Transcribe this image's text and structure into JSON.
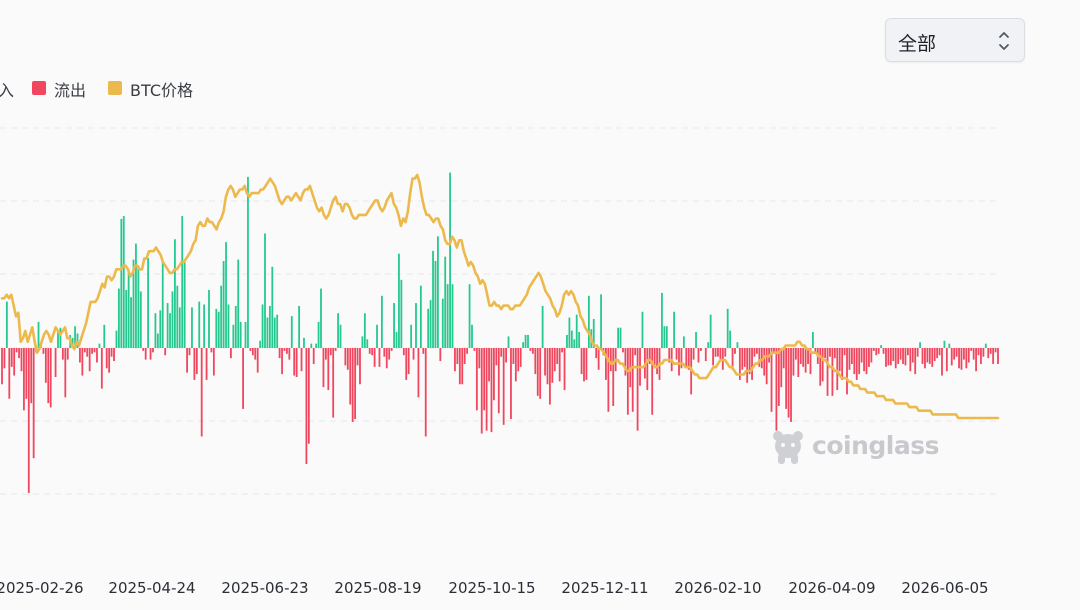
{
  "filter": {
    "selected": "全部"
  },
  "legend": [
    {
      "label": "流入",
      "color": "#25c98f"
    },
    {
      "label": "流出",
      "color": "#f0465e"
    },
    {
      "label": "BTC价格",
      "color": "#ecb94c"
    }
  ],
  "watermark": "coinglass",
  "chart_data": {
    "type": "bar",
    "x_tick_labels": [
      "2025-02-26",
      "2025-04-24",
      "2025-06-23",
      "2025-08-19",
      "2025-10-15",
      "2025-12-11",
      "2026-02-10",
      "2026-04-09",
      "2026-06-05"
    ],
    "grid": true,
    "series": [
      {
        "name": "流入",
        "color": "#25c98f",
        "kind": "bar",
        "values": []
      },
      {
        "name": "流出",
        "color": "#f0465e",
        "kind": "bar",
        "values": []
      },
      {
        "name": "BTC价格",
        "color": "#ecb94c",
        "kind": "line",
        "values": []
      }
    ],
    "bar_values": [
      -2.5,
      -1.4,
      3.2,
      -3.5,
      -1.3,
      -1.9,
      -0.3,
      -0.7,
      -1.6,
      -4.3,
      -3.5,
      -10,
      -3.8,
      -7.6,
      -0.3,
      1.8,
      0.2,
      -0.4,
      -2.4,
      -3.8,
      -4.1,
      0,
      -2,
      1.1,
      1.4,
      -0.8,
      -3.4,
      -0.8,
      0.9,
      0.7,
      1.5,
      1,
      -1,
      -1.9,
      -0.3,
      -0.6,
      -1.6,
      -0.4,
      -0.3,
      -1,
      0.3,
      -2.8,
      1.6,
      -1.4,
      -1.7,
      -0.6,
      -0.9,
      1.2,
      4.1,
      8.9,
      9.1,
      4,
      5.4,
      3.5,
      6.1,
      7.2,
      5.7,
      3.9,
      -0.2,
      -0.8,
      6.2,
      -0.8,
      -0.3,
      2.4,
      1,
      2.6,
      6,
      -0.5,
      3.1,
      2.4,
      3.9,
      7.5,
      4.3,
      2.8,
      9.1,
      6,
      -1.7,
      -0.5,
      2.8,
      -2.2,
      -1.8,
      3.2,
      -6.1,
      3,
      -2.2,
      4,
      -0.3,
      -1.9,
      2.7,
      2.5,
      4.3,
      6,
      7.3,
      3,
      -0.7,
      1.6,
      2.9,
      6.1,
      1.8,
      -4.2,
      1.8,
      11.8,
      -0.2,
      -0.5,
      -0.8,
      -1.7,
      0.5,
      3,
      7.9,
      2.1,
      2.9,
      5.6,
      2.1,
      2.3,
      -0.7,
      -1.8,
      -0.2,
      -0.4,
      -0.8,
      2.2,
      -1.9,
      -2,
      2.9,
      -1.6,
      0.7,
      -8,
      -6.6,
      0.3,
      -1.1,
      0.3,
      1.8,
      4.1,
      -2.7,
      -0.8,
      -2.9,
      -0.5,
      -4.8,
      -0.2,
      2.4,
      1.6,
      0,
      -1.2,
      -1.5,
      -3.9,
      -5.1,
      -4.9,
      -1.2,
      -2.5,
      0.8,
      2.4,
      0.6,
      -0.4,
      -0.5,
      -1.3,
      1.6,
      -1.3,
      3.6,
      -0.6,
      -1.4,
      -0.8,
      -0.2,
      3.1,
      1.1,
      6.5,
      4.7,
      -0.5,
      -2.2,
      -1.8,
      1.6,
      -0.8,
      3.1,
      -3.4,
      4.3,
      -0.4,
      -6.1,
      2.7,
      3.3,
      6.7,
      6,
      7.7,
      -0.9,
      3.4,
      6.3,
      4.4,
      12.1,
      4.4,
      -1.6,
      -1.1,
      -2.5,
      -2.5,
      -1.1,
      -0.4,
      4.4,
      1.6,
      -0.2,
      -4.3,
      -1.4,
      -5.9,
      -4.3,
      -5.7,
      -2.3,
      -5.8,
      -3.6,
      -1.2,
      -4.5,
      -0.6,
      -5.3,
      -1,
      0.8,
      -4.9,
      -1.1,
      -2.3,
      -1.6,
      -1.3,
      0.4,
      0.9,
      0.9,
      -0.2,
      -0.4,
      -1.8,
      -3.3,
      -3.5,
      2.9,
      -1.9,
      -2.5,
      -3.9,
      -2.4,
      -1.6,
      -1.1,
      -2.3,
      -0.3,
      -2.9,
      0.9,
      2.1,
      1.2,
      0.6,
      2.3,
      1.1,
      -1.8,
      -2.3,
      -2.2,
      3.6,
      1.3,
      2,
      -0.7,
      -1.5,
      3.7,
      -0.5,
      -2.2,
      -4.4,
      -1.6,
      -4,
      -1.6,
      1.4,
      1.4,
      -0.3,
      -1.9,
      -4.6,
      -2.7,
      -4.4,
      -0.5,
      -5.7,
      -2.6,
      2.5,
      -2.1,
      -2.9,
      -1.1,
      -4.6,
      -1.4,
      -1.8,
      -2.2,
      3.8,
      1.5,
      1.5,
      -1,
      -1.6,
      2.5,
      -0.8,
      -1.9,
      -1.4,
      0.8,
      -1.4,
      -1.5,
      -3.2,
      -0.8,
      1.1,
      -1,
      -0.2,
      0,
      -0.9,
      0.4,
      2.3,
      -1.2,
      -0.6,
      -0.6,
      -0.8,
      -1.5,
      -0.6,
      2.7,
      1.2,
      -1.5,
      -0.4,
      0.4,
      -2.2,
      -1.5,
      -1.3,
      -2.4,
      -1.8,
      -2.2,
      -0.6,
      -0.4,
      -1.3,
      -1.4,
      -1.9,
      -2.5,
      -1,
      -4.4,
      -0.4,
      -5.7,
      -4,
      -2.7,
      -1.4,
      -4.2,
      -4.8,
      -5.1,
      -1.9,
      -0.8,
      -2,
      -1.1,
      -1.3,
      -1.7,
      -1.1,
      -1.8,
      1.1,
      -0.4,
      -1.1,
      -2.6,
      -2.3,
      -0.7,
      -3.3,
      -0.6,
      -3.3,
      -0.7,
      -2.9,
      -1.6,
      -2.2,
      -0.5,
      -3.2,
      -1.5,
      -1.1,
      -1.8,
      -2.2,
      -1.8,
      -1,
      -1.6,
      -1.8,
      -1.3,
      -1,
      -0.2,
      -0.5,
      -0.4,
      0.2,
      -0.4,
      -1.3,
      -1.2,
      -1.2,
      -0.9,
      -1.4,
      -1.1,
      -0.8,
      -1.1,
      -1.2,
      -0.5,
      -1.6,
      -1,
      -1.8,
      -0.6,
      0.4,
      -1.1,
      -1.4,
      -1,
      -1.1,
      -1.3,
      -0.9,
      -0.7,
      -0.5,
      -1.9,
      0.5,
      -1.6,
      0.3,
      -1.2,
      -0.8,
      -0.6,
      -1.4,
      -1.5,
      -0.8,
      -1.4,
      -1,
      -0.2,
      -0.8,
      -1.6,
      -0.5,
      -1.1,
      -0.6,
      0.3,
      -0.7,
      -0.4,
      -1.1,
      -0.3,
      -1.1
    ],
    "price_values": [
      88,
      88,
      89,
      88,
      89,
      86,
      83,
      84,
      76,
      77,
      79,
      76,
      78,
      80,
      76,
      73,
      74,
      76,
      78,
      79,
      78,
      76,
      78,
      80,
      79,
      78,
      79,
      80,
      77,
      77,
      75,
      74,
      76,
      75,
      77,
      79,
      81,
      84,
      87,
      87,
      87,
      88,
      90,
      92,
      91,
      94,
      94,
      93,
      94,
      96,
      96,
      96,
      97,
      97,
      96,
      94,
      95,
      97,
      97,
      96,
      96,
      99,
      99,
      101,
      101,
      101,
      102,
      101,
      100,
      98,
      97,
      96,
      95,
      95,
      96,
      96,
      97,
      98,
      98,
      99,
      100,
      101,
      103,
      104,
      108,
      109,
      108,
      108,
      110,
      109,
      109,
      108,
      107,
      109,
      110,
      112,
      116,
      118,
      119,
      118,
      116,
      117,
      118,
      118,
      119,
      117,
      116,
      117,
      117,
      117,
      117,
      118,
      118,
      119,
      120,
      121,
      120,
      119,
      117,
      115,
      114,
      115,
      116,
      116,
      115,
      116,
      117,
      116,
      115,
      117,
      118,
      118,
      119,
      117,
      115,
      113,
      112,
      113,
      111,
      110,
      111,
      113,
      115,
      116,
      114,
      114,
      112,
      114,
      114,
      113,
      111,
      110,
      110,
      111,
      111,
      111,
      111,
      112,
      113,
      114,
      115,
      115,
      113,
      112,
      113,
      115,
      116,
      117,
      114,
      113,
      111,
      108,
      110,
      109,
      112,
      117,
      121,
      121,
      122,
      120,
      116,
      113,
      111,
      111,
      110,
      109,
      110,
      110,
      108,
      107,
      104,
      103,
      103,
      105,
      104,
      102,
      104,
      104,
      101,
      99,
      97,
      98,
      97,
      95,
      94,
      92,
      93,
      92,
      89,
      86,
      86,
      87,
      86,
      86,
      85,
      86,
      86,
      86,
      85,
      85,
      86,
      86,
      86,
      87,
      88,
      89,
      91,
      92,
      93,
      94,
      95,
      94,
      92,
      90,
      89,
      88,
      86,
      85,
      83,
      84,
      86,
      89,
      90,
      89,
      90,
      89,
      87,
      86,
      83,
      82,
      80,
      79,
      78,
      76,
      75,
      75,
      74,
      74,
      73,
      72,
      71,
      70,
      70,
      71,
      71,
      70,
      70,
      69,
      68,
      68,
      69,
      69,
      69,
      69,
      69,
      69,
      70,
      71,
      71,
      70,
      69,
      69,
      70,
      70,
      71,
      71,
      71,
      71,
      70,
      70,
      70,
      70,
      70,
      69,
      69,
      69,
      68,
      67,
      67,
      66,
      66,
      66,
      66,
      67,
      68,
      69,
      69,
      70,
      71,
      71,
      71,
      70,
      69,
      69,
      68,
      67,
      67,
      67,
      67,
      68,
      68,
      68,
      69,
      70,
      70,
      71,
      71,
      72,
      72,
      72,
      73,
      73,
      73,
      73,
      74,
      74,
      75,
      75,
      75,
      75,
      75,
      76,
      76,
      75,
      75,
      74,
      74,
      73,
      73,
      73,
      72,
      72,
      71,
      71,
      70,
      69,
      69,
      68,
      68,
      67,
      66,
      66,
      66,
      65,
      65,
      64,
      64,
      64,
      63,
      63,
      63,
      62,
      62,
      62,
      62,
      61,
      61,
      61,
      61,
      60,
      60,
      60,
      60,
      59,
      59,
      59,
      59,
      59,
      59,
      58,
      58,
      58,
      58,
      57,
      57,
      57,
      57,
      57,
      57,
      56,
      56,
      56,
      56,
      56,
      56,
      56,
      56,
      56,
      56,
      56,
      55,
      55,
      55,
      55,
      55,
      55,
      55,
      55,
      55,
      55,
      55,
      55,
      55,
      55,
      55,
      55,
      55,
      55
    ]
  }
}
